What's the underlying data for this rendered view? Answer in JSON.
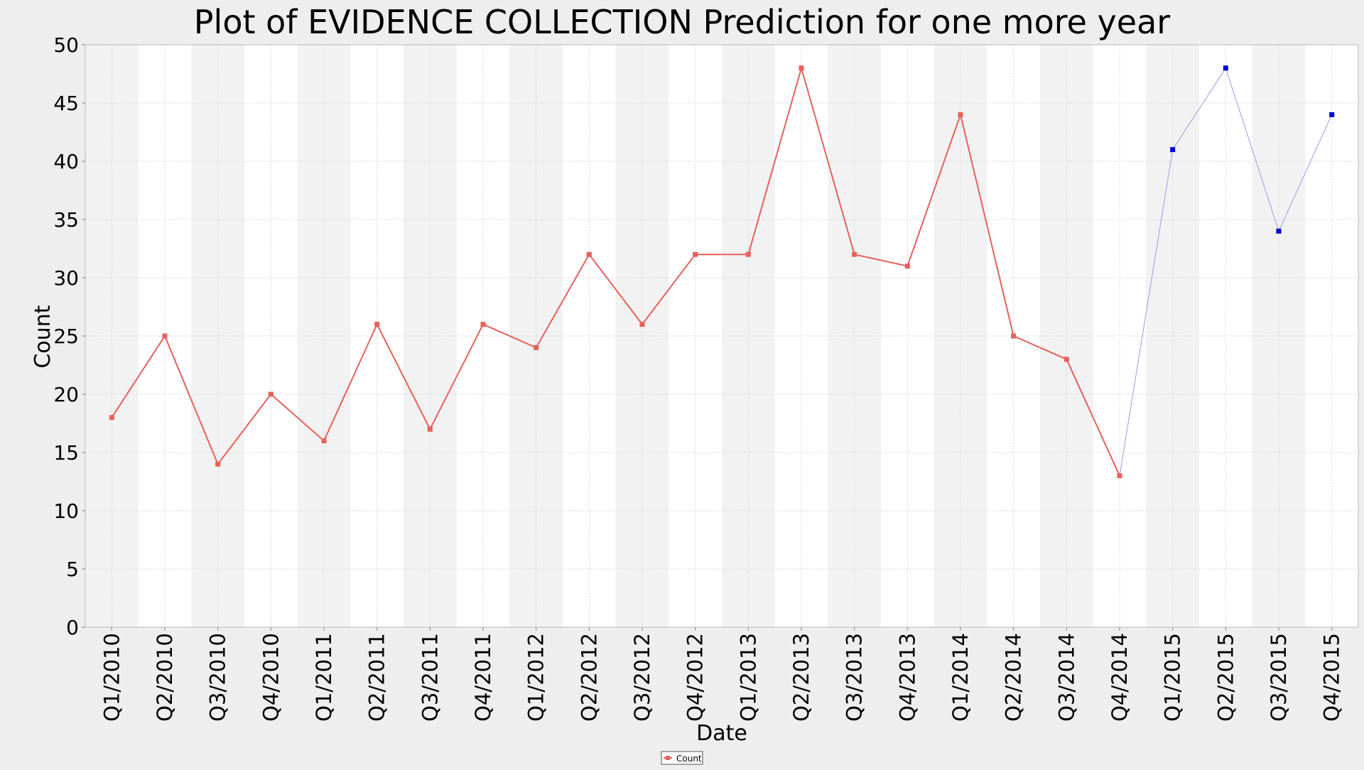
{
  "chart_data": {
    "type": "line",
    "title": "Plot of EVIDENCE COLLECTION Prediction for one more year",
    "xlabel": "Date",
    "ylabel": "Count",
    "ylim": [
      0,
      50
    ],
    "yticks": [
      0,
      5,
      10,
      15,
      20,
      25,
      30,
      35,
      40,
      45,
      50
    ],
    "grid": true,
    "alternating_column_bands": true,
    "legend_position": "bottom-center",
    "categories": [
      "Q1/2010",
      "Q2/2010",
      "Q3/2010",
      "Q4/2010",
      "Q1/2011",
      "Q2/2011",
      "Q3/2011",
      "Q4/2011",
      "Q1/2012",
      "Q2/2012",
      "Q3/2012",
      "Q4/2012",
      "Q1/2013",
      "Q2/2013",
      "Q3/2013",
      "Q4/2013",
      "Q1/2014",
      "Q2/2014",
      "Q3/2014",
      "Q4/2014",
      "Q1/2015",
      "Q2/2015",
      "Q3/2015",
      "Q4/2015"
    ],
    "series": [
      {
        "name": "Count",
        "color": "#e8605a",
        "marker": "square",
        "values": [
          18,
          25,
          14,
          20,
          16,
          26,
          17,
          26,
          24,
          32,
          26,
          32,
          32,
          48,
          32,
          31,
          44,
          25,
          23,
          13,
          null,
          null,
          null,
          null
        ]
      },
      {
        "color": "#9a9ae8",
        "marker_color": "#0000dd",
        "marker": "square",
        "values": [
          null,
          null,
          null,
          null,
          null,
          null,
          null,
          null,
          null,
          null,
          null,
          null,
          null,
          null,
          null,
          null,
          null,
          null,
          null,
          13,
          41,
          48,
          34,
          44
        ]
      }
    ],
    "legend": [
      {
        "label": "Count",
        "color": "#e8605a"
      }
    ]
  }
}
